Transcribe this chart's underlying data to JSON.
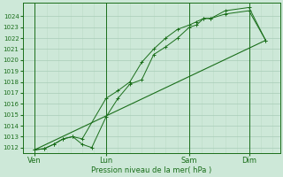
{
  "bg_color": "#cde8d8",
  "grid_color_major": "#a8ccb8",
  "grid_color_minor": "#c0deca",
  "line_color": "#1a6e1a",
  "xlabel": "Pression niveau de la mer( hPa )",
  "ylim": [
    1011.5,
    1025.2
  ],
  "yticks": [
    1012,
    1013,
    1014,
    1015,
    1016,
    1017,
    1018,
    1019,
    1020,
    1021,
    1022,
    1023,
    1024
  ],
  "xtick_labels": [
    "Ven",
    "Lun",
    "Sam",
    "Dim"
  ],
  "xtick_positions": [
    0.5,
    3.5,
    7.0,
    9.5
  ],
  "xlim": [
    0.0,
    10.8
  ],
  "vlines_x": [
    0.5,
    3.5,
    7.0,
    9.5
  ],
  "line1_x": [
    0.5,
    0.9,
    1.3,
    1.7,
    2.1,
    2.5,
    2.9,
    3.5,
    4.0,
    4.5,
    5.0,
    5.5,
    6.0,
    6.5,
    7.0,
    7.3,
    7.6,
    7.9,
    8.5,
    9.5,
    10.2
  ],
  "line1_y": [
    1011.8,
    1011.9,
    1012.3,
    1012.8,
    1013.0,
    1012.3,
    1012.0,
    1014.8,
    1016.5,
    1017.8,
    1018.2,
    1020.5,
    1021.2,
    1022.0,
    1023.0,
    1023.2,
    1023.8,
    1023.8,
    1024.5,
    1024.8,
    1021.8
  ],
  "line2_x": [
    0.5,
    0.9,
    1.3,
    1.7,
    2.1,
    2.5,
    3.5,
    4.0,
    4.5,
    5.0,
    5.5,
    6.0,
    6.5,
    7.0,
    7.3,
    7.6,
    7.9,
    8.5,
    9.5,
    10.2
  ],
  "line2_y": [
    1011.8,
    1011.9,
    1012.3,
    1012.8,
    1013.0,
    1012.8,
    1016.5,
    1017.2,
    1018.0,
    1019.8,
    1021.0,
    1022.0,
    1022.8,
    1023.2,
    1023.5,
    1023.8,
    1023.8,
    1024.2,
    1024.5,
    1021.8
  ],
  "line3_x": [
    0.5,
    10.2
  ],
  "line3_y": [
    1011.8,
    1021.8
  ],
  "font_color": "#1a6e1a",
  "ylabel_fontsize": 6,
  "ytick_fontsize": 5,
  "xtick_fontsize": 6
}
